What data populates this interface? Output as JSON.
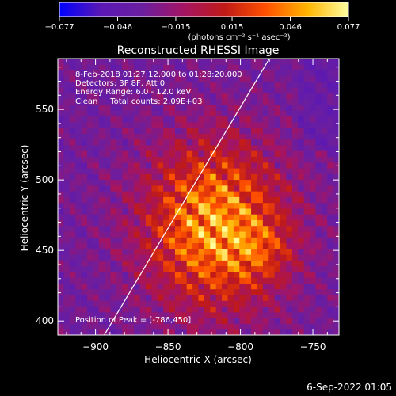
{
  "colorbar": {
    "ticks": [
      "-0.077",
      "-0.046",
      "-0.015",
      "0.015",
      "0.046",
      "0.077"
    ],
    "units": "(photons cm⁻² s⁻¹ asec⁻²)"
  },
  "chart_data": {
    "type": "heatmap",
    "title": "Reconstructed RHESSI Image",
    "xlabel": "Heliocentric X (arcsec)",
    "ylabel": "Heliocentric Y (arcsec)",
    "xlim": [
      -926,
      -732
    ],
    "ylim": [
      390,
      586
    ],
    "xticks": [
      -900,
      -850,
      -800,
      -750
    ],
    "yticks": [
      400,
      450,
      500,
      550
    ],
    "xtick_labels": [
      "−900",
      "−850",
      "−800",
      "−750"
    ],
    "ytick_labels": [
      "400",
      "450",
      "500",
      "550"
    ],
    "zlim": [
      -0.077,
      0.077
    ],
    "colormap": [
      "#0000ff",
      "#5a18b4",
      "#6a1ea0",
      "#a41464",
      "#c01a18",
      "#ff5000",
      "#ffb400",
      "#ffffa0"
    ],
    "annotations": [
      "8-Feb-2018 01:27:12.000 to 01:28:20.000",
      "Detectors: 3F 8F, Att 0",
      "Energy Range: 6.0 - 12.0 keV",
      "Clean     Total counts: 2.09E+03"
    ],
    "peak_label": "Position of Peak = [-786,450]",
    "peak": [
      -786,
      450
    ],
    "limb_line": [
      [
        -894,
        390
      ],
      [
        -780,
        586
      ]
    ]
  },
  "footer": {
    "date": "6-Sep-2022 01:05"
  }
}
